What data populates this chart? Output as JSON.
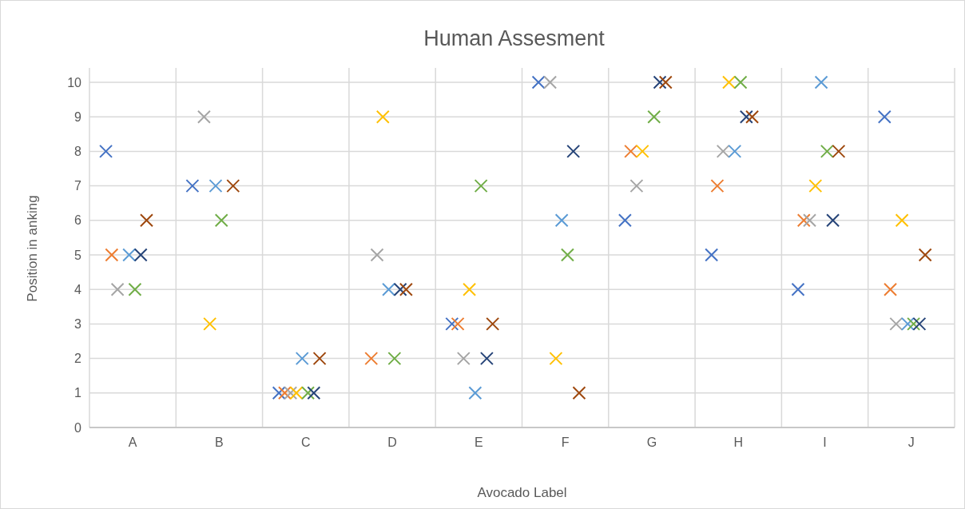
{
  "chart_data": {
    "type": "scatter",
    "title": "Human Assesment",
    "xlabel": "Avocado Label",
    "ylabel": "Position in anking",
    "categories": [
      "A",
      "B",
      "C",
      "D",
      "E",
      "F",
      "G",
      "H",
      "I",
      "J"
    ],
    "ylim": [
      0,
      10
    ],
    "yticks": [
      0,
      1,
      2,
      3,
      4,
      5,
      6,
      7,
      8,
      9,
      10
    ],
    "grid": true,
    "marker": "cross",
    "series": [
      {
        "color": "#4472c4",
        "values": [
          8,
          7,
          1,
          null,
          3,
          10,
          6,
          5,
          4,
          9
        ]
      },
      {
        "color": "#ed7d31",
        "values": [
          5,
          null,
          1,
          2,
          3,
          null,
          8,
          7,
          6,
          4
        ]
      },
      {
        "color": "#a5a5a5",
        "values": [
          4,
          9,
          1,
          5,
          2,
          10,
          7,
          8,
          6,
          3
        ]
      },
      {
        "color": "#ffc000",
        "values": [
          null,
          3,
          1,
          9,
          4,
          2,
          8,
          10,
          7,
          6
        ]
      },
      {
        "color": "#5b9bd5",
        "values": [
          5,
          7,
          2,
          4,
          1,
          6,
          null,
          8,
          10,
          3
        ]
      },
      {
        "color": "#70ad47",
        "values": [
          4,
          6,
          1,
          2,
          7,
          5,
          9,
          10,
          8,
          3
        ]
      },
      {
        "color": "#264478",
        "values": [
          5,
          null,
          1,
          4,
          2,
          8,
          10,
          9,
          6,
          3
        ]
      },
      {
        "color": "#9e480e",
        "values": [
          6,
          7,
          2,
          4,
          3,
          1,
          10,
          9,
          8,
          5
        ]
      }
    ]
  }
}
